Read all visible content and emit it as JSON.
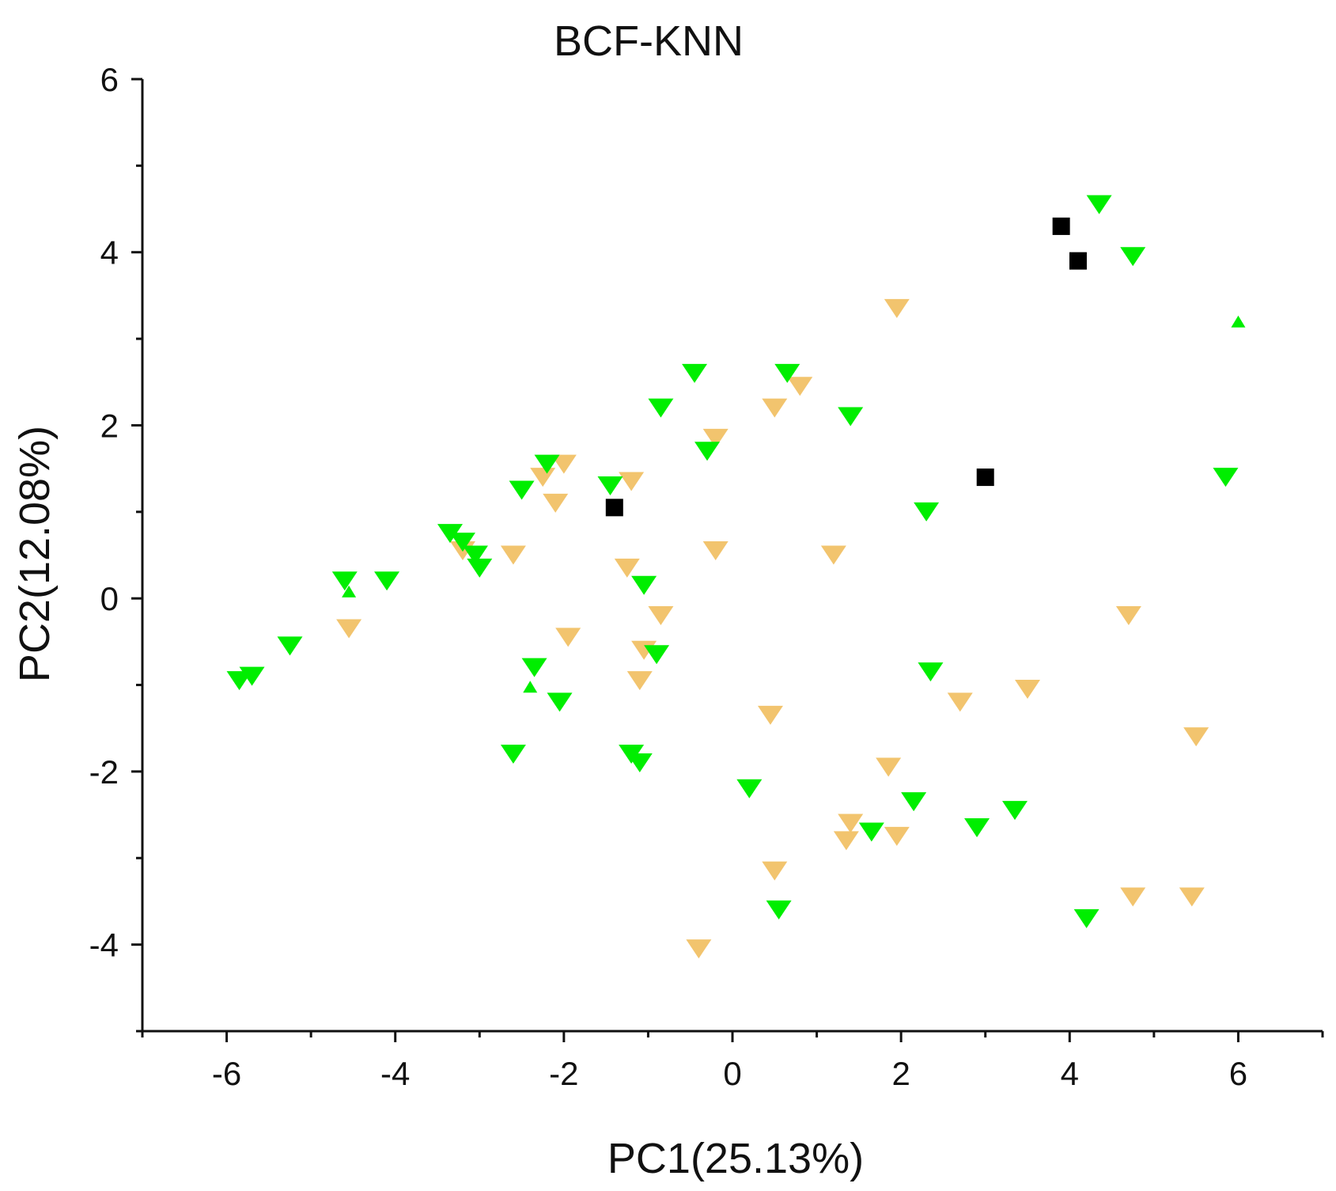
{
  "chart_data": {
    "type": "scatter",
    "title": "BCF-KNN",
    "xlabel": "PC1(25.13%)",
    "ylabel": "PC2(12.08%)",
    "xlim": [
      -7,
      7
    ],
    "ylim": [
      -5,
      6
    ],
    "xticks": [
      -6,
      -4,
      -2,
      0,
      2,
      4,
      6
    ],
    "yticks": [
      -4,
      -2,
      0,
      2,
      4,
      6
    ],
    "grid": false,
    "legend": "none",
    "series": [
      {
        "name": "black squares",
        "marker": "square",
        "color": "#000000",
        "points": [
          [
            3.9,
            4.3
          ],
          [
            4.1,
            3.9
          ],
          [
            3.0,
            1.4
          ],
          [
            -1.4,
            1.05
          ]
        ]
      },
      {
        "name": "green down triangles",
        "marker": "triangle-down",
        "color": "#00ee00",
        "points": [
          [
            4.35,
            4.55
          ],
          [
            4.75,
            3.95
          ],
          [
            5.85,
            1.4
          ],
          [
            -0.45,
            2.6
          ],
          [
            0.65,
            2.6
          ],
          [
            -0.85,
            2.2
          ],
          [
            1.4,
            2.1
          ],
          [
            -0.3,
            1.7
          ],
          [
            -2.2,
            1.55
          ],
          [
            -1.45,
            1.3
          ],
          [
            -2.5,
            1.25
          ],
          [
            2.3,
            1.0
          ],
          [
            -3.35,
            0.75
          ],
          [
            -3.2,
            0.65
          ],
          [
            -3.05,
            0.5
          ],
          [
            -3.0,
            0.35
          ],
          [
            -4.6,
            0.2
          ],
          [
            -4.1,
            0.2
          ],
          [
            -1.05,
            0.15
          ],
          [
            -5.25,
            -0.55
          ],
          [
            -5.85,
            -0.95
          ],
          [
            -5.7,
            -0.9
          ],
          [
            -2.35,
            -0.8
          ],
          [
            -0.9,
            -0.65
          ],
          [
            -2.05,
            -1.2
          ],
          [
            2.35,
            -0.85
          ],
          [
            -2.6,
            -1.8
          ],
          [
            -1.2,
            -1.8
          ],
          [
            -1.1,
            -1.9
          ],
          [
            0.2,
            -2.2
          ],
          [
            2.15,
            -2.35
          ],
          [
            3.35,
            -2.45
          ],
          [
            1.65,
            -2.7
          ],
          [
            2.9,
            -2.65
          ],
          [
            0.55,
            -3.6
          ],
          [
            4.2,
            -3.7
          ]
        ]
      },
      {
        "name": "orange down triangles",
        "marker": "triangle-down",
        "color": "#f2c46e",
        "points": [
          [
            1.95,
            3.35
          ],
          [
            0.8,
            2.45
          ],
          [
            0.5,
            2.2
          ],
          [
            -0.2,
            1.85
          ],
          [
            -2.0,
            1.55
          ],
          [
            -2.25,
            1.4
          ],
          [
            -1.2,
            1.35
          ],
          [
            -2.1,
            1.1
          ],
          [
            -3.2,
            0.55
          ],
          [
            -2.6,
            0.5
          ],
          [
            -0.2,
            0.55
          ],
          [
            1.2,
            0.5
          ],
          [
            -1.25,
            0.35
          ],
          [
            -4.55,
            -0.35
          ],
          [
            -0.85,
            -0.2
          ],
          [
            4.7,
            -0.2
          ],
          [
            -1.05,
            -0.6
          ],
          [
            -1.1,
            -0.95
          ],
          [
            -1.95,
            -0.45
          ],
          [
            0.45,
            -1.35
          ],
          [
            2.7,
            -1.2
          ],
          [
            3.5,
            -1.05
          ],
          [
            5.5,
            -1.6
          ],
          [
            1.85,
            -1.95
          ],
          [
            1.4,
            -2.6
          ],
          [
            1.35,
            -2.8
          ],
          [
            1.95,
            -2.75
          ],
          [
            0.5,
            -3.15
          ],
          [
            4.75,
            -3.45
          ],
          [
            5.45,
            -3.45
          ],
          [
            -0.4,
            -4.05
          ]
        ]
      },
      {
        "name": "green up triangles",
        "marker": "triangle-up",
        "color": "#00ee00",
        "points": [
          [
            6.0,
            3.2
          ],
          [
            -4.55,
            0.08
          ],
          [
            -2.4,
            -1.02
          ]
        ]
      }
    ]
  }
}
